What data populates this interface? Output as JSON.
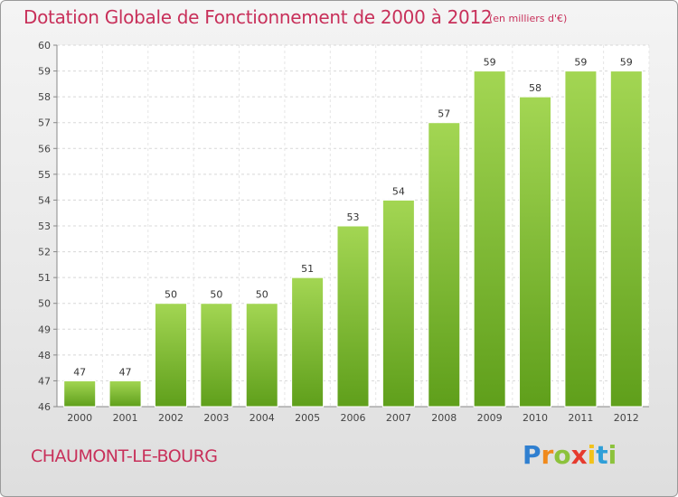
{
  "header": {
    "title": "Dotation Globale de Fonctionnement de 2000 à 2012",
    "unit": "(en milliers d'€)"
  },
  "footer": {
    "commune": "CHAUMONT-LE-BOURG",
    "logo_letters": [
      "P",
      "r",
      "o",
      "x",
      "i",
      "t",
      "i"
    ]
  },
  "colors": {
    "accent": "#c8305a",
    "bar_top": "#9fd24e",
    "bar_bottom": "#5e9e1a"
  },
  "chart_data": {
    "type": "bar",
    "title": "Dotation Globale de Fonctionnement de 2000 à 2012",
    "categories": [
      "2000",
      "2001",
      "2002",
      "2003",
      "2004",
      "2005",
      "2006",
      "2007",
      "2008",
      "2009",
      "2010",
      "2011",
      "2012"
    ],
    "values": [
      47,
      47,
      50,
      50,
      50,
      51,
      53,
      54,
      57,
      59,
      58,
      59,
      59
    ],
    "ylim": [
      46,
      60
    ],
    "yticks": [
      46,
      47,
      48,
      49,
      50,
      51,
      52,
      53,
      54,
      55,
      56,
      57,
      58,
      59,
      60
    ],
    "grid": true,
    "data_labels": true
  }
}
